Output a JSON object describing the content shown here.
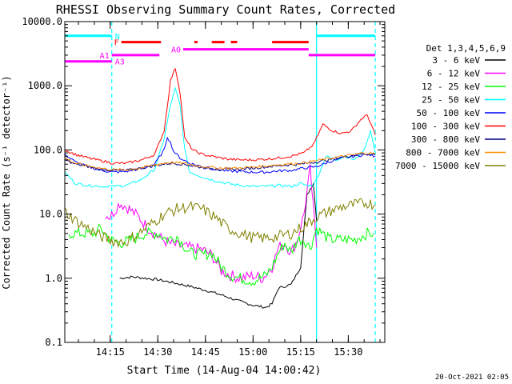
{
  "chart_data": {
    "type": "line",
    "title": "RHESSI Observing Summary Count Rates, Corrected",
    "xlabel": "Start Time (14-Aug-04 14:00:42)",
    "ylabel": "Corrected Count Rate (s⁻¹ detector⁻¹)",
    "y_scale": "log",
    "ylim": [
      0.1,
      10000
    ],
    "xlim_minutes": [
      0.7,
      101.5
    ],
    "x_ticks": [
      {
        "label": "14:15",
        "t": 15
      },
      {
        "label": "14:30",
        "t": 30
      },
      {
        "label": "14:45",
        "t": 45
      },
      {
        "label": "15:00",
        "t": 60
      },
      {
        "label": "15:15",
        "t": 75
      },
      {
        "label": "15:30",
        "t": 90
      }
    ],
    "y_ticks": [
      {
        "label": "0.1",
        "v": 0.1
      },
      {
        "label": "1.0",
        "v": 1
      },
      {
        "label": "10.0",
        "v": 10
      },
      {
        "label": "100.0",
        "v": 100
      },
      {
        "label": "1000.0",
        "v": 1000
      },
      {
        "label": "10000.0",
        "v": 10000
      }
    ],
    "legend_title": "Det 1,3,4,5,6,9",
    "legend_position": "right",
    "series": [
      {
        "name": "3 - 6 keV",
        "color": "#000000",
        "points": [
          [
            18,
            1.0
          ],
          [
            22,
            1.05
          ],
          [
            26,
            1.0
          ],
          [
            30,
            0.95
          ],
          [
            35,
            0.85
          ],
          [
            40,
            0.75
          ],
          [
            45,
            0.65
          ],
          [
            50,
            0.55
          ],
          [
            55,
            0.45
          ],
          [
            60,
            0.38
          ],
          [
            64,
            0.35
          ],
          [
            66,
            0.4
          ],
          [
            68,
            0.7
          ],
          [
            72,
            0.8
          ],
          [
            75,
            1.5
          ],
          [
            77,
            20
          ],
          [
            79,
            30
          ],
          [
            80,
            8
          ]
        ]
      },
      {
        "name": "6 - 12 keV",
        "color": "#ff00ff",
        "points": [
          [
            13.5,
            10
          ],
          [
            15,
            9
          ],
          [
            18,
            15
          ],
          [
            21,
            12
          ],
          [
            24,
            9
          ],
          [
            27,
            6
          ],
          [
            30,
            4.5
          ],
          [
            33,
            3.6
          ],
          [
            36,
            3.2
          ],
          [
            40,
            3.0
          ],
          [
            44,
            2.8
          ],
          [
            47,
            2.3
          ],
          [
            50,
            1.3
          ],
          [
            53,
            1.1
          ],
          [
            56,
            1.0
          ],
          [
            60,
            1.1
          ],
          [
            63,
            1.0
          ],
          [
            66,
            1.5
          ],
          [
            68,
            3
          ],
          [
            70,
            3.5
          ],
          [
            72,
            2.5
          ],
          [
            74,
            4
          ],
          [
            76,
            10
          ],
          [
            78,
            50
          ],
          [
            80,
            3
          ]
        ]
      },
      {
        "name": "12 - 25 keV",
        "color": "#00ff00",
        "points": [
          [
            2,
            5
          ],
          [
            6,
            5
          ],
          [
            10,
            5
          ],
          [
            12,
            6
          ],
          [
            15,
            4
          ],
          [
            18,
            3.5
          ],
          [
            22,
            4
          ],
          [
            26,
            5
          ],
          [
            30,
            5
          ],
          [
            33,
            4
          ],
          [
            36,
            4.5
          ],
          [
            40,
            2.5
          ],
          [
            44,
            2.3
          ],
          [
            47,
            2.5
          ],
          [
            50,
            1.5
          ],
          [
            53,
            1.1
          ],
          [
            56,
            1.0
          ],
          [
            60,
            0.9
          ],
          [
            64,
            1.1
          ],
          [
            66,
            1.5
          ],
          [
            68,
            2.5
          ],
          [
            70,
            3.5
          ],
          [
            72,
            2.5
          ],
          [
            74,
            4
          ],
          [
            76,
            4
          ],
          [
            78,
            3
          ],
          [
            80,
            6
          ],
          [
            84,
            4
          ],
          [
            88,
            4
          ],
          [
            92,
            4
          ],
          [
            96,
            5
          ],
          [
            98,
            5
          ]
        ]
      },
      {
        "name": "25 - 50 keV",
        "color": "#00ffff",
        "points": [
          [
            0.7,
            45
          ],
          [
            4,
            30
          ],
          [
            8,
            28
          ],
          [
            12,
            27
          ],
          [
            16,
            27
          ],
          [
            20,
            28
          ],
          [
            25,
            35
          ],
          [
            29,
            50
          ],
          [
            32,
            150
          ],
          [
            34,
            500
          ],
          [
            35.5,
            900
          ],
          [
            37,
            500
          ],
          [
            38.5,
            100
          ],
          [
            40,
            45
          ],
          [
            44,
            38
          ],
          [
            48,
            33
          ],
          [
            52,
            30
          ],
          [
            56,
            28
          ],
          [
            60,
            27
          ],
          [
            64,
            27
          ],
          [
            68,
            28
          ],
          [
            72,
            27
          ],
          [
            75,
            30
          ],
          [
            77,
            28
          ],
          [
            79,
            28
          ],
          [
            81,
            45
          ],
          [
            83,
            80
          ],
          [
            86,
            70
          ],
          [
            89,
            80
          ],
          [
            92,
            70
          ],
          [
            95,
            100
          ],
          [
            97,
            200
          ],
          [
            98.5,
            90
          ]
        ]
      },
      {
        "name": "50 - 100 keV",
        "color": "#0000ff",
        "points": [
          [
            0.7,
            85
          ],
          [
            4,
            65
          ],
          [
            8,
            55
          ],
          [
            12,
            48
          ],
          [
            16,
            45
          ],
          [
            20,
            46
          ],
          [
            25,
            52
          ],
          [
            29,
            60
          ],
          [
            32,
            100
          ],
          [
            33,
            160
          ],
          [
            34,
            130
          ],
          [
            35,
            95
          ],
          [
            37,
            75
          ],
          [
            40,
            62
          ],
          [
            44,
            55
          ],
          [
            48,
            50
          ],
          [
            52,
            47
          ],
          [
            56,
            46
          ],
          [
            60,
            45
          ],
          [
            64,
            45
          ],
          [
            68,
            47
          ],
          [
            72,
            48
          ],
          [
            76,
            52
          ],
          [
            80,
            55
          ],
          [
            84,
            65
          ],
          [
            88,
            75
          ],
          [
            92,
            80
          ],
          [
            96,
            85
          ],
          [
            98.5,
            80
          ]
        ]
      },
      {
        "name": "100 - 300 keV",
        "color": "#ff0000",
        "points": [
          [
            0.7,
            100
          ],
          [
            4,
            85
          ],
          [
            8,
            75
          ],
          [
            12,
            68
          ],
          [
            16,
            62
          ],
          [
            20,
            62
          ],
          [
            25,
            70
          ],
          [
            29,
            85
          ],
          [
            32,
            200
          ],
          [
            34,
            1200
          ],
          [
            35.5,
            1900
          ],
          [
            37,
            800
          ],
          [
            38.5,
            150
          ],
          [
            41,
            100
          ],
          [
            44,
            85
          ],
          [
            48,
            78
          ],
          [
            52,
            72
          ],
          [
            56,
            70
          ],
          [
            60,
            70
          ],
          [
            64,
            72
          ],
          [
            68,
            75
          ],
          [
            72,
            80
          ],
          [
            76,
            90
          ],
          [
            79,
            120
          ],
          [
            82,
            250
          ],
          [
            85,
            200
          ],
          [
            88,
            180
          ],
          [
            91,
            200
          ],
          [
            94,
            300
          ],
          [
            96,
            350
          ],
          [
            98.5,
            170
          ]
        ]
      },
      {
        "name": "300 - 800 keV",
        "color": "#000080",
        "points": [
          [
            0.7,
            70
          ],
          [
            4,
            60
          ],
          [
            8,
            55
          ],
          [
            12,
            50
          ],
          [
            16,
            48
          ],
          [
            20,
            48
          ],
          [
            25,
            52
          ],
          [
            30,
            58
          ],
          [
            34,
            62
          ],
          [
            38,
            60
          ],
          [
            42,
            55
          ],
          [
            46,
            52
          ],
          [
            50,
            50
          ],
          [
            55,
            50
          ],
          [
            60,
            52
          ],
          [
            65,
            55
          ],
          [
            70,
            58
          ],
          [
            75,
            60
          ],
          [
            80,
            65
          ],
          [
            85,
            72
          ],
          [
            90,
            80
          ],
          [
            95,
            88
          ],
          [
            98.5,
            85
          ]
        ]
      },
      {
        "name": "800 - 7000 keV",
        "color": "#ff8c00",
        "points": [
          [
            0.7,
            75
          ],
          [
            4,
            62
          ],
          [
            8,
            56
          ],
          [
            12,
            52
          ],
          [
            16,
            49
          ],
          [
            20,
            49
          ],
          [
            25,
            53
          ],
          [
            30,
            60
          ],
          [
            34,
            64
          ],
          [
            38,
            62
          ],
          [
            42,
            57
          ],
          [
            46,
            54
          ],
          [
            50,
            52
          ],
          [
            55,
            52
          ],
          [
            60,
            54
          ],
          [
            65,
            57
          ],
          [
            70,
            60
          ],
          [
            75,
            62
          ],
          [
            80,
            68
          ],
          [
            85,
            75
          ],
          [
            90,
            82
          ],
          [
            95,
            90
          ],
          [
            98.5,
            88
          ]
        ]
      },
      {
        "name": "7000 - 15000 keV",
        "color": "#808000",
        "points": [
          [
            0.7,
            11
          ],
          [
            4,
            8
          ],
          [
            8,
            6
          ],
          [
            12,
            4.5
          ],
          [
            16,
            3.8
          ],
          [
            20,
            3.7
          ],
          [
            24,
            5
          ],
          [
            28,
            7
          ],
          [
            32,
            10
          ],
          [
            36,
            12
          ],
          [
            40,
            13
          ],
          [
            44,
            12
          ],
          [
            48,
            9
          ],
          [
            52,
            6
          ],
          [
            56,
            5
          ],
          [
            60,
            4.3
          ],
          [
            64,
            4.2
          ],
          [
            68,
            4.5
          ],
          [
            72,
            5
          ],
          [
            76,
            6.5
          ],
          [
            80,
            9
          ],
          [
            84,
            11
          ],
          [
            88,
            13
          ],
          [
            92,
            14
          ],
          [
            96,
            15
          ],
          [
            98.5,
            14
          ]
        ]
      }
    ],
    "flag_bars": [
      {
        "label": "N",
        "color": "#00ffff",
        "segments": [
          [
            0.7,
            15.5
          ],
          [
            80,
            98.5
          ]
        ],
        "v": 6000
      },
      {
        "label": "F",
        "color": "#ff0000",
        "segments": [
          [
            18.5,
            31
          ],
          [
            41.5,
            42.5
          ],
          [
            47,
            51
          ],
          [
            53,
            55
          ],
          [
            66,
            77.5
          ]
        ],
        "v": 4800
      },
      {
        "label": "A0",
        "color": "#ff00ff",
        "segments": [
          [
            38,
            77.5
          ]
        ],
        "v": 3700
      },
      {
        "label": "A1",
        "color": "#ff00ff",
        "segments": [
          [
            15.5,
            30.5
          ],
          [
            77.5,
            98.5
          ]
        ],
        "v": 3000
      },
      {
        "label": "A3",
        "color": "#ff00ff",
        "segments": [
          [
            0.7,
            15.5
          ]
        ],
        "v": 2400
      }
    ],
    "vertical_lines": [
      {
        "t": 15.5,
        "color": "#00ffff",
        "dashed": true
      },
      {
        "t": 80,
        "color": "#00ffff",
        "dashed": false
      },
      {
        "t": 98.5,
        "color": "#00ffff",
        "dashed": true
      }
    ]
  },
  "footer_timestamp": "20-Oct-2021 02:05"
}
